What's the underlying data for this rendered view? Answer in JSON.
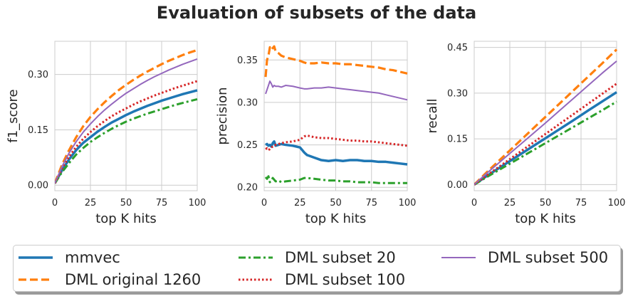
{
  "title": "Evaluation of subsets of the data",
  "legend_placement": "bottom",
  "chart_data": [
    {
      "type": "line",
      "xlabel": "top K hits",
      "ylabel": "f1_score",
      "xlim": [
        0,
        100
      ],
      "ylim": [
        -0.015,
        0.39
      ],
      "xticks": [
        "0",
        "25",
        "50",
        "75",
        "100"
      ],
      "yticks": [
        {
          "v": 0.0,
          "label": "0.00"
        },
        {
          "v": 0.15,
          "label": "0.15"
        },
        {
          "v": 0.3,
          "label": "0.30"
        }
      ],
      "grid": true,
      "x": [
        0,
        5,
        10,
        15,
        20,
        25,
        30,
        35,
        40,
        45,
        50,
        55,
        60,
        65,
        70,
        75,
        80,
        85,
        90,
        95,
        100
      ],
      "series": [
        {
          "name": "mmvec",
          "values": [
            0.005,
            0.04,
            0.07,
            0.095,
            0.115,
            0.13,
            0.145,
            0.158,
            0.17,
            0.18,
            0.19,
            0.199,
            0.207,
            0.215,
            0.222,
            0.229,
            0.235,
            0.241,
            0.247,
            0.252,
            0.257
          ]
        },
        {
          "name": "DML original 1260",
          "values": [
            0.005,
            0.055,
            0.095,
            0.13,
            0.16,
            0.185,
            0.206,
            0.225,
            0.242,
            0.258,
            0.272,
            0.285,
            0.297,
            0.308,
            0.318,
            0.328,
            0.337,
            0.345,
            0.353,
            0.36,
            0.366
          ]
        },
        {
          "name": "DML subset 20",
          "values": [
            0.005,
            0.035,
            0.06,
            0.083,
            0.101,
            0.117,
            0.13,
            0.142,
            0.153,
            0.163,
            0.172,
            0.18,
            0.187,
            0.194,
            0.2,
            0.206,
            0.212,
            0.218,
            0.223,
            0.228,
            0.233
          ]
        },
        {
          "name": "DML subset 100",
          "values": [
            0.005,
            0.045,
            0.077,
            0.104,
            0.126,
            0.144,
            0.16,
            0.174,
            0.187,
            0.198,
            0.208,
            0.218,
            0.227,
            0.235,
            0.243,
            0.25,
            0.257,
            0.264,
            0.27,
            0.276,
            0.282
          ]
        },
        {
          "name": "DML subset 500",
          "values": [
            0.005,
            0.05,
            0.087,
            0.118,
            0.144,
            0.166,
            0.186,
            0.204,
            0.22,
            0.235,
            0.249,
            0.261,
            0.273,
            0.284,
            0.294,
            0.303,
            0.312,
            0.32,
            0.328,
            0.335,
            0.342
          ]
        }
      ]
    },
    {
      "type": "line",
      "xlabel": "top K hits",
      "ylabel": "precision",
      "xlim": [
        0,
        100
      ],
      "ylim": [
        0.196,
        0.372
      ],
      "xticks": [
        "0",
        "25",
        "50",
        "75",
        "100"
      ],
      "yticks": [
        {
          "v": 0.2,
          "label": "0.20"
        },
        {
          "v": 0.25,
          "label": "0.25"
        },
        {
          "v": 0.3,
          "label": "0.30"
        },
        {
          "v": 0.35,
          "label": "0.35"
        }
      ],
      "grid": true,
      "x": [
        1,
        2,
        3,
        4,
        5,
        6,
        7,
        8,
        10,
        12,
        15,
        20,
        25,
        28,
        30,
        35,
        40,
        45,
        50,
        55,
        60,
        65,
        70,
        75,
        80,
        85,
        90,
        95,
        100
      ],
      "series": [
        {
          "name": "mmvec",
          "values": [
            0.25,
            0.251,
            0.249,
            0.25,
            0.248,
            0.252,
            0.254,
            0.249,
            0.25,
            0.251,
            0.25,
            0.249,
            0.247,
            0.241,
            0.238,
            0.235,
            0.232,
            0.231,
            0.232,
            0.231,
            0.232,
            0.232,
            0.231,
            0.231,
            0.23,
            0.23,
            0.229,
            0.228,
            0.227
          ]
        },
        {
          "name": "DML original 1260",
          "values": [
            0.33,
            0.35,
            0.355,
            0.365,
            0.362,
            0.364,
            0.366,
            0.36,
            0.358,
            0.355,
            0.353,
            0.351,
            0.349,
            0.347,
            0.346,
            0.346,
            0.347,
            0.346,
            0.346,
            0.345,
            0.345,
            0.344,
            0.343,
            0.342,
            0.341,
            0.339,
            0.338,
            0.336,
            0.334
          ]
        },
        {
          "name": "DML subset 20",
          "values": [
            0.212,
            0.21,
            0.213,
            0.206,
            0.208,
            0.211,
            0.209,
            0.207,
            0.208,
            0.206,
            0.207,
            0.208,
            0.209,
            0.211,
            0.211,
            0.21,
            0.209,
            0.208,
            0.208,
            0.207,
            0.207,
            0.206,
            0.206,
            0.206,
            0.205,
            0.205,
            0.205,
            0.205,
            0.205
          ]
        },
        {
          "name": "DML subset 100",
          "values": [
            0.245,
            0.246,
            0.244,
            0.245,
            0.247,
            0.248,
            0.249,
            0.25,
            0.251,
            0.252,
            0.253,
            0.254,
            0.256,
            0.26,
            0.261,
            0.259,
            0.258,
            0.258,
            0.257,
            0.256,
            0.255,
            0.255,
            0.254,
            0.254,
            0.253,
            0.252,
            0.251,
            0.25,
            0.249
          ]
        },
        {
          "name": "DML subset 500",
          "values": [
            0.31,
            0.315,
            0.32,
            0.325,
            0.322,
            0.318,
            0.32,
            0.319,
            0.319,
            0.318,
            0.32,
            0.319,
            0.317,
            0.316,
            0.316,
            0.317,
            0.317,
            0.318,
            0.317,
            0.316,
            0.315,
            0.314,
            0.313,
            0.312,
            0.311,
            0.309,
            0.307,
            0.305,
            0.303
          ]
        }
      ]
    },
    {
      "type": "line",
      "xlabel": "top K hits",
      "ylabel": "recall",
      "xlim": [
        0,
        100
      ],
      "ylim": [
        -0.02,
        0.47
      ],
      "xticks": [
        "0",
        "25",
        "50",
        "75",
        "100"
      ],
      "yticks": [
        {
          "v": 0.0,
          "label": "0.00"
        },
        {
          "v": 0.15,
          "label": "0.15"
        },
        {
          "v": 0.3,
          "label": "0.30"
        },
        {
          "v": 0.45,
          "label": "0.45"
        }
      ],
      "grid": true,
      "x": [
        0,
        10,
        20,
        30,
        40,
        50,
        60,
        70,
        80,
        90,
        100
      ],
      "series": [
        {
          "name": "mmvec",
          "values": [
            0.0,
            0.032,
            0.062,
            0.092,
            0.122,
            0.152,
            0.182,
            0.212,
            0.243,
            0.273,
            0.303
          ]
        },
        {
          "name": "DML original 1260",
          "values": [
            0.0,
            0.046,
            0.09,
            0.134,
            0.178,
            0.222,
            0.266,
            0.31,
            0.354,
            0.398,
            0.443
          ]
        },
        {
          "name": "DML subset 20",
          "values": [
            0.0,
            0.028,
            0.055,
            0.082,
            0.109,
            0.136,
            0.163,
            0.19,
            0.217,
            0.244,
            0.272
          ]
        },
        {
          "name": "DML subset 100",
          "values": [
            0.0,
            0.034,
            0.067,
            0.1,
            0.133,
            0.166,
            0.199,
            0.232,
            0.265,
            0.298,
            0.331
          ]
        },
        {
          "name": "DML subset 500",
          "values": [
            0.0,
            0.042,
            0.082,
            0.122,
            0.162,
            0.202,
            0.243,
            0.284,
            0.325,
            0.366,
            0.405
          ]
        }
      ]
    }
  ],
  "series_styles": [
    {
      "color": "#1f77b4",
      "dash": "",
      "width": 3.5
    },
    {
      "color": "#ff7f0e",
      "dash": "11,5",
      "width": 3.2
    },
    {
      "color": "#2ca02c",
      "dash": "10,4,3,4",
      "width": 3
    },
    {
      "color": "#d62728",
      "dash": "2.5,3",
      "width": 3
    },
    {
      "color": "#9467bd",
      "dash": "",
      "width": 2
    }
  ],
  "legend_items": [
    "mmvec",
    "DML original 1260",
    "DML subset 20",
    "DML subset 100",
    "DML subset 500"
  ]
}
